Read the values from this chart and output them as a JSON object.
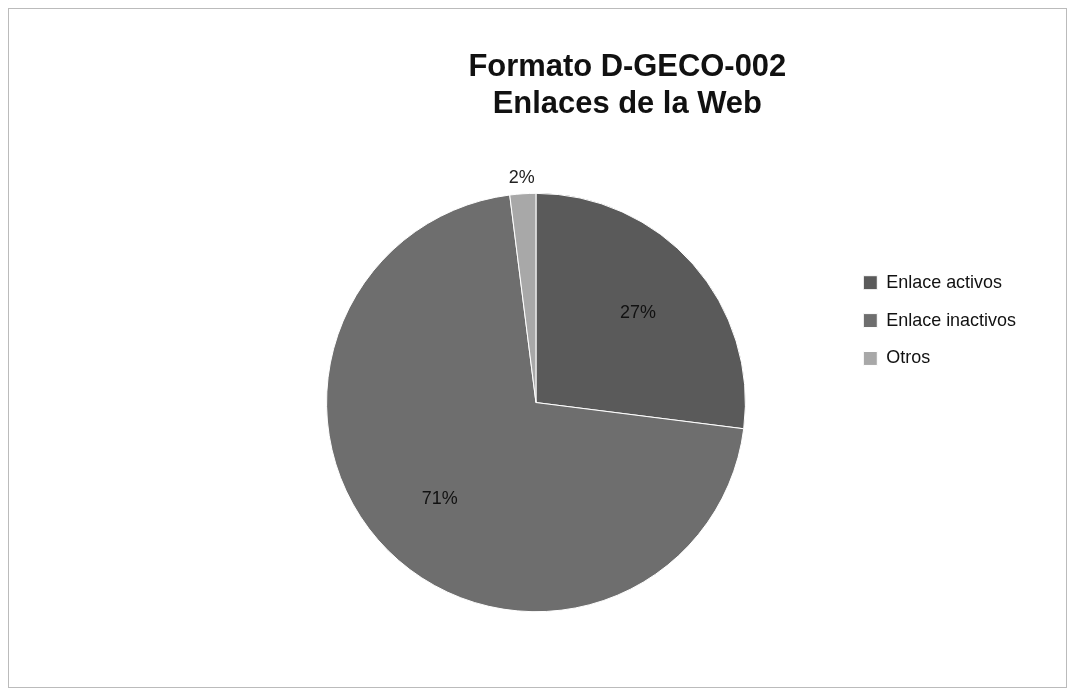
{
  "chart_data": {
    "type": "pie",
    "title": "Formato D-GECO-002\nEnlaces de la Web",
    "categories": [
      "Enlace activos",
      "Enlace inactivos",
      "Otros"
    ],
    "values": [
      27,
      71,
      2
    ],
    "colors": [
      "#5a5a5a",
      "#6e6e6e",
      "#a8a8a8"
    ],
    "value_labels": [
      "27%",
      "71%",
      "2%"
    ],
    "legend": "right"
  }
}
